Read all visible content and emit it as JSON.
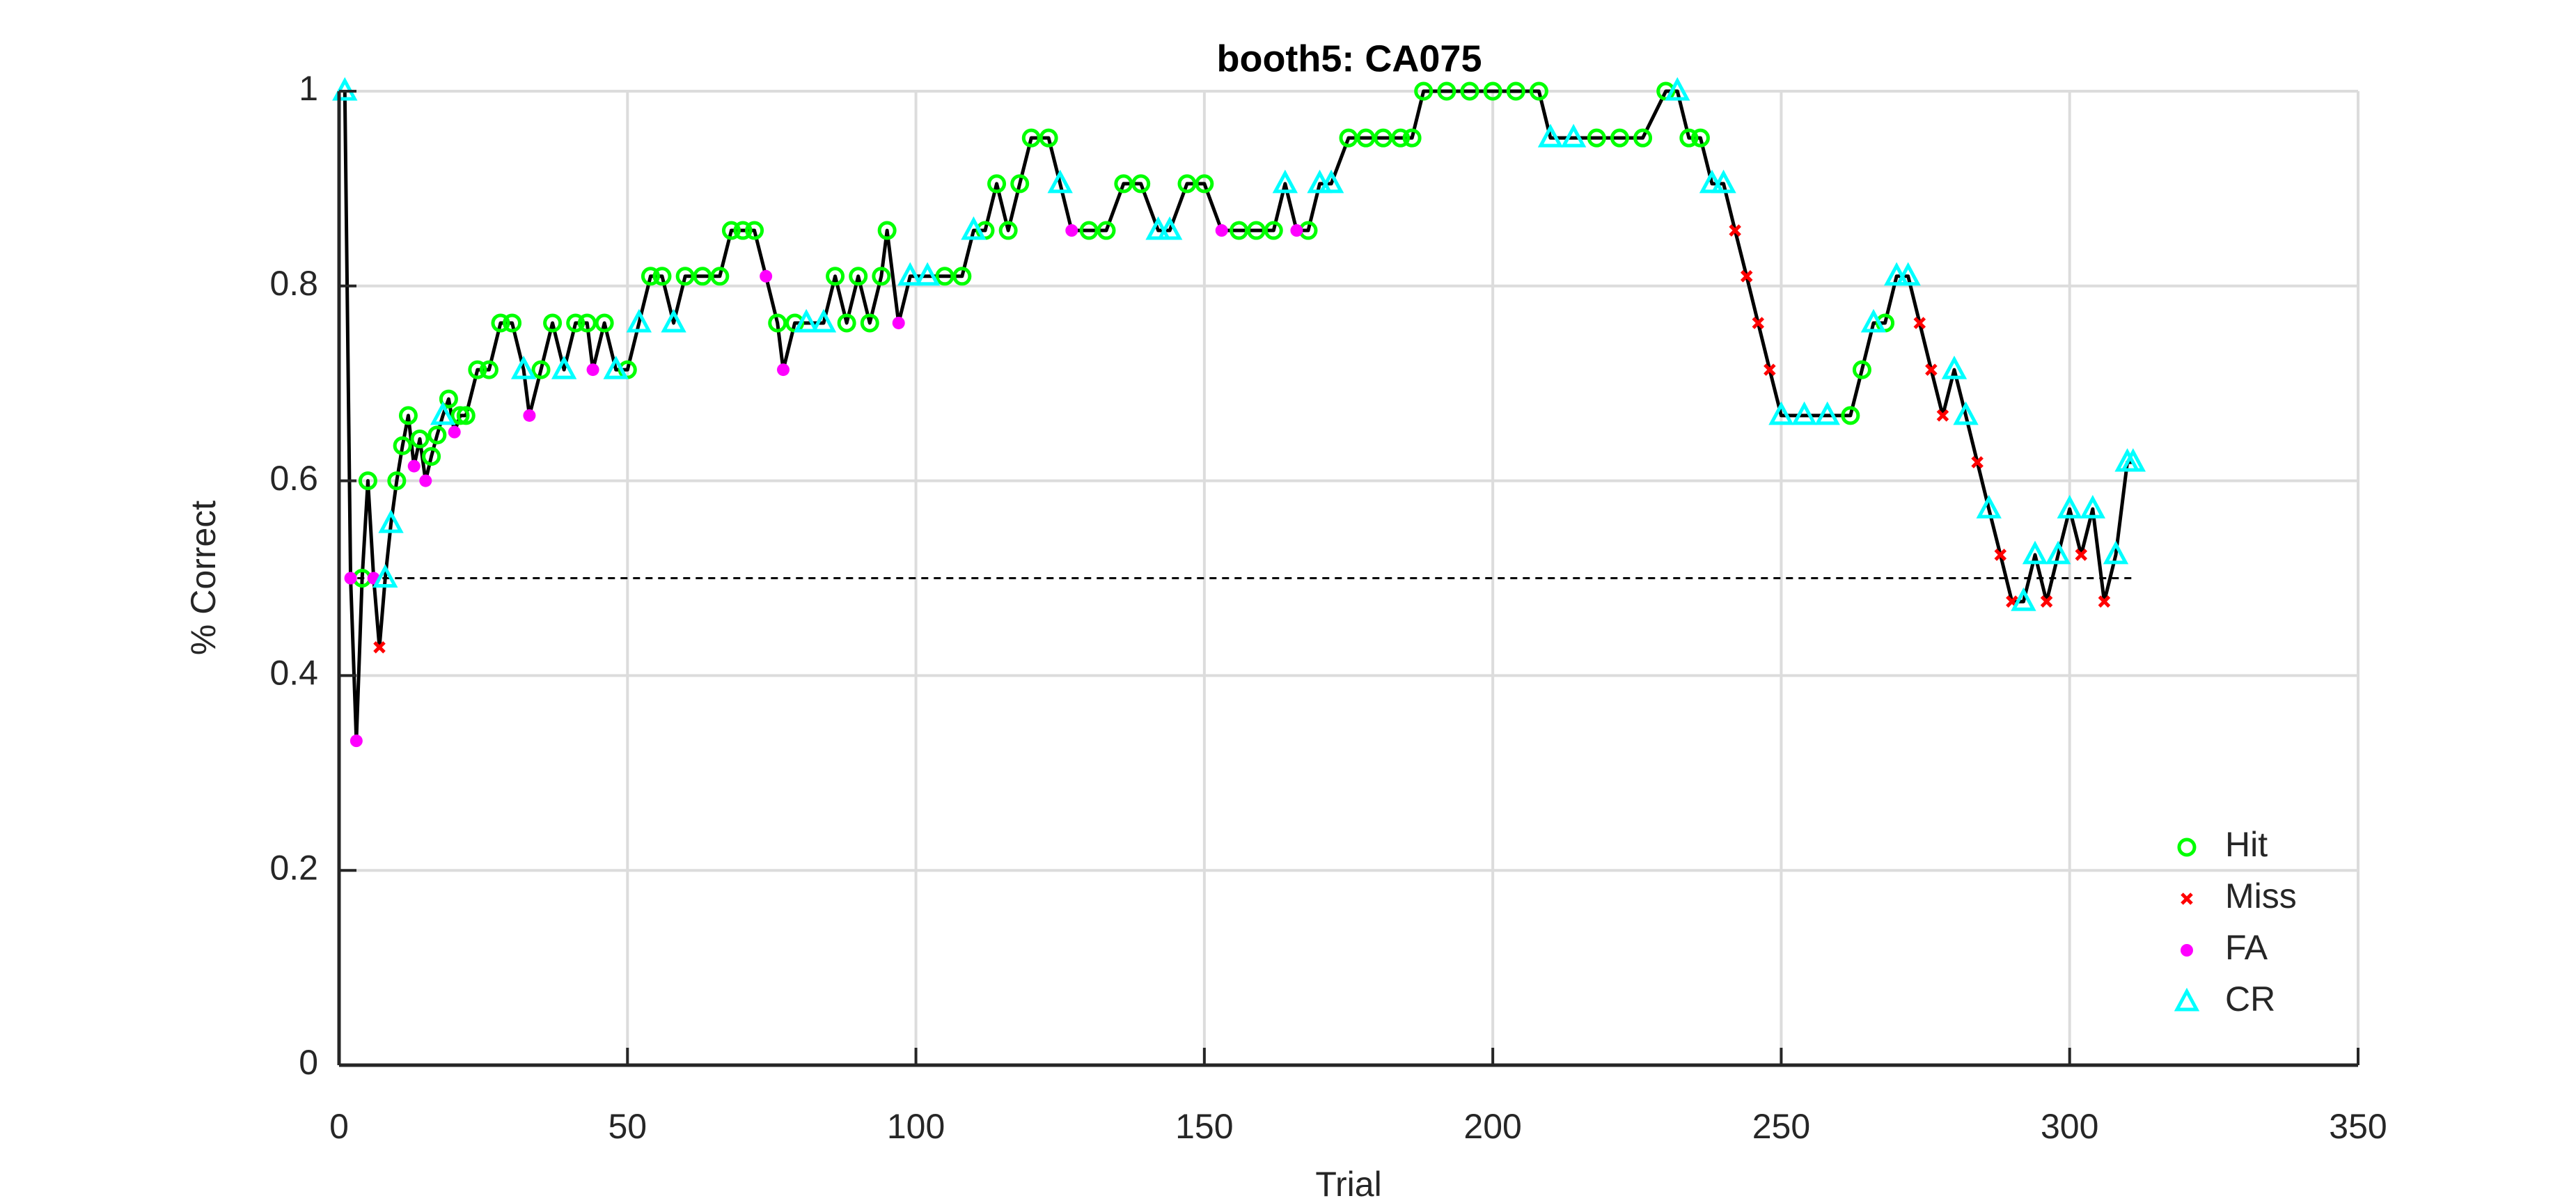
{
  "chart_data": {
    "type": "line",
    "title": "booth5: CA075",
    "xlabel": "Trial",
    "ylabel": "% Correct",
    "xlim": [
      0,
      350
    ],
    "ylim": [
      0,
      1
    ],
    "xticks": [
      0,
      50,
      100,
      150,
      200,
      250,
      300,
      350
    ],
    "yticks": [
      0,
      0.2,
      0.4,
      0.6,
      0.8,
      1
    ],
    "grid": true,
    "legend": "lower right",
    "line": {
      "color": "#000000",
      "x": [
        1,
        2,
        3,
        4,
        5,
        6,
        7,
        8,
        9,
        10,
        11,
        12,
        13,
        14,
        15,
        16,
        17,
        18,
        19,
        20,
        21,
        22,
        24,
        26,
        28,
        30,
        32,
        33,
        35,
        37,
        39,
        41,
        43,
        44,
        46,
        48,
        50,
        52,
        54,
        56,
        58,
        60,
        63,
        66,
        68,
        70,
        72,
        74,
        76,
        77,
        79,
        81,
        84,
        86,
        88,
        90,
        92,
        94,
        95,
        97,
        99,
        102,
        105,
        108,
        110,
        112,
        114,
        116,
        118,
        120,
        123,
        125,
        127,
        130,
        133,
        136,
        139,
        142,
        144,
        147,
        150,
        153,
        156,
        159,
        162,
        164,
        166,
        168,
        170,
        172,
        175,
        178,
        181,
        184,
        186,
        188,
        192,
        196,
        200,
        204,
        208,
        210,
        214,
        218,
        222,
        226,
        230,
        232,
        234,
        236,
        238,
        240,
        242,
        244,
        246,
        248,
        250,
        254,
        258,
        262,
        264,
        266,
        268,
        270,
        272,
        274,
        276,
        278,
        280,
        282,
        284,
        286,
        288,
        290,
        292,
        294,
        296,
        298,
        300,
        302,
        304,
        306,
        308,
        310,
        311
      ],
      "values": [
        1,
        0.5,
        0.333,
        0.5,
        0.6,
        0.5,
        0.429,
        0.5,
        0.556,
        0.6,
        0.636,
        0.667,
        0.615,
        0.643,
        0.6,
        0.625,
        0.647,
        0.667,
        0.684,
        0.65,
        0.667,
        0.667,
        0.714,
        0.714,
        0.762,
        0.762,
        0.714,
        0.667,
        0.714,
        0.762,
        0.714,
        0.762,
        0.762,
        0.714,
        0.762,
        0.714,
        0.714,
        0.762,
        0.81,
        0.81,
        0.762,
        0.81,
        0.81,
        0.81,
        0.857,
        0.857,
        0.857,
        0.81,
        0.762,
        0.714,
        0.762,
        0.762,
        0.762,
        0.81,
        0.762,
        0.81,
        0.762,
        0.81,
        0.857,
        0.762,
        0.81,
        0.81,
        0.81,
        0.81,
        0.857,
        0.857,
        0.905,
        0.857,
        0.905,
        0.952,
        0.952,
        0.905,
        0.857,
        0.857,
        0.857,
        0.905,
        0.905,
        0.857,
        0.857,
        0.905,
        0.905,
        0.857,
        0.857,
        0.857,
        0.857,
        0.905,
        0.857,
        0.857,
        0.905,
        0.905,
        0.952,
        0.952,
        0.952,
        0.952,
        0.952,
        1,
        1,
        1,
        1,
        1,
        1,
        0.952,
        0.952,
        0.952,
        0.952,
        0.952,
        1,
        1,
        0.952,
        0.952,
        0.905,
        0.905,
        0.857,
        0.81,
        0.762,
        0.714,
        0.667,
        0.667,
        0.667,
        0.667,
        0.714,
        0.762,
        0.762,
        0.81,
        0.81,
        0.762,
        0.714,
        0.667,
        0.714,
        0.667,
        0.619,
        0.571,
        0.524,
        0.476,
        0.476,
        0.524,
        0.476,
        0.524,
        0.571,
        0.524,
        0.571,
        0.476,
        0.524,
        0.619,
        0.619
      ]
    },
    "chance_line": {
      "y": 0.5,
      "x": [
        1,
        311
      ]
    },
    "series": [
      {
        "name": "Hit",
        "color": "#00ff00",
        "marker": "open-circle",
        "x": [
          4,
          5,
          10,
          11,
          12,
          14,
          16,
          17,
          19,
          21,
          22,
          24,
          26,
          28,
          30,
          35,
          37,
          41,
          43,
          46,
          50,
          54,
          56,
          60,
          63,
          66,
          68,
          70,
          72,
          76,
          79,
          86,
          88,
          90,
          92,
          94,
          95,
          105,
          108,
          112,
          114,
          116,
          118,
          120,
          123,
          130,
          133,
          136,
          139,
          147,
          150,
          156,
          159,
          162,
          168,
          175,
          178,
          181,
          184,
          186,
          188,
          192,
          196,
          200,
          204,
          208,
          218,
          222,
          226,
          230,
          234,
          236,
          262,
          264,
          268
        ],
        "values": [
          0.5,
          0.6,
          0.6,
          0.636,
          0.667,
          0.643,
          0.625,
          0.647,
          0.684,
          0.667,
          0.667,
          0.714,
          0.714,
          0.762,
          0.762,
          0.714,
          0.762,
          0.762,
          0.762,
          0.762,
          0.714,
          0.81,
          0.81,
          0.81,
          0.81,
          0.81,
          0.857,
          0.857,
          0.857,
          0.762,
          0.762,
          0.81,
          0.762,
          0.81,
          0.762,
          0.81,
          0.857,
          0.81,
          0.81,
          0.857,
          0.905,
          0.857,
          0.905,
          0.952,
          0.952,
          0.857,
          0.857,
          0.905,
          0.905,
          0.905,
          0.905,
          0.857,
          0.857,
          0.857,
          0.857,
          0.952,
          0.952,
          0.952,
          0.952,
          0.952,
          1,
          1,
          1,
          1,
          1,
          1,
          0.952,
          0.952,
          0.952,
          1,
          0.952,
          0.952,
          0.667,
          0.714,
          0.762
        ]
      },
      {
        "name": "Miss",
        "color": "#ff0000",
        "marker": "cross",
        "x": [
          7,
          242,
          244,
          246,
          248,
          274,
          276,
          278,
          284,
          288,
          290,
          296,
          302,
          306
        ],
        "values": [
          0.429,
          0.857,
          0.81,
          0.762,
          0.714,
          0.762,
          0.714,
          0.667,
          0.619,
          0.524,
          0.476,
          0.476,
          0.524,
          0.476
        ]
      },
      {
        "name": "FA",
        "color": "#ff00ff",
        "marker": "filled-circle",
        "x": [
          2,
          3,
          6,
          13,
          15,
          20,
          33,
          44,
          74,
          77,
          97,
          127,
          153,
          166
        ],
        "values": [
          0.5,
          0.333,
          0.5,
          0.615,
          0.6,
          0.65,
          0.667,
          0.714,
          0.81,
          0.714,
          0.762,
          0.857,
          0.857,
          0.857
        ]
      },
      {
        "name": "CR",
        "color": "#00ffff",
        "marker": "open-triangle",
        "x": [
          1,
          8,
          9,
          18,
          32,
          39,
          48,
          52,
          58,
          81,
          84,
          99,
          102,
          110,
          125,
          142,
          144,
          164,
          170,
          172,
          210,
          214,
          232,
          238,
          240,
          250,
          254,
          258,
          266,
          270,
          272,
          280,
          282,
          286,
          292,
          294,
          298,
          300,
          304,
          308,
          310,
          311
        ],
        "values": [
          1,
          0.5,
          0.556,
          0.667,
          0.714,
          0.714,
          0.714,
          0.762,
          0.762,
          0.762,
          0.762,
          0.81,
          0.81,
          0.857,
          0.905,
          0.857,
          0.857,
          0.905,
          0.905,
          0.905,
          0.952,
          0.952,
          1,
          0.905,
          0.905,
          0.667,
          0.667,
          0.667,
          0.762,
          0.81,
          0.81,
          0.714,
          0.667,
          0.571,
          0.476,
          0.524,
          0.524,
          0.571,
          0.571,
          0.524,
          0.619,
          0.619
        ]
      }
    ]
  }
}
